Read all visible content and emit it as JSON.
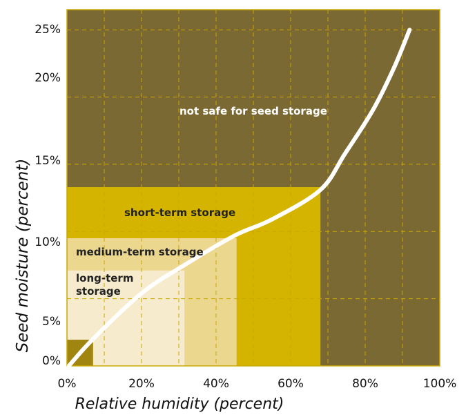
{
  "chart_data": {
    "type": "region-curve",
    "x_axis_label": "Relative humidity (percent)",
    "y_axis_label": "Seed moisture (percent)",
    "xlim": [
      0,
      100
    ],
    "ylim": [
      0,
      26.5
    ],
    "xticks": [
      {
        "value": 0,
        "label": "0%"
      },
      {
        "value": 20,
        "label": "20%"
      },
      {
        "value": 40,
        "label": "40%"
      },
      {
        "value": 60,
        "label": "60%"
      },
      {
        "value": 80,
        "label": "80%"
      },
      {
        "value": 100,
        "label": "100%"
      }
    ],
    "x_minor_grid": [
      10,
      30,
      50,
      70,
      90
    ],
    "yticks": [
      {
        "value": 0,
        "label": "0%"
      },
      {
        "value": 5,
        "label": "5%"
      },
      {
        "value": 10,
        "label": "10%"
      },
      {
        "value": 15,
        "label": "15%"
      },
      {
        "value": 20,
        "label": "20%"
      },
      {
        "value": 25,
        "label": "25%"
      }
    ],
    "grid": true,
    "background": {
      "label": "not safe for seed storage",
      "color": "#7b6933"
    },
    "regions": [
      {
        "label": "short-term storage",
        "x": 68,
        "y": 13.3,
        "color": "#d5b400"
      },
      {
        "label": "medium-term storage",
        "x": 45.5,
        "y": 9.5,
        "color": "#ecd78f"
      },
      {
        "label": "long-term storage",
        "x": 31.5,
        "y": 7.1,
        "color": "#f6ebcc"
      },
      {
        "x": 7,
        "y": 1.95,
        "color": "#a08510"
      }
    ],
    "series": [
      {
        "color": "#ffffff",
        "x": [
          0.5,
          7,
          20,
          31.5,
          45,
          55,
          68,
          74.6,
          82,
          87.6,
          91.9
        ],
        "y": [
          0,
          2,
          5.4,
          7.5,
          9.7,
          10.9,
          13.1,
          15.8,
          19,
          22.1,
          25
        ]
      }
    ]
  }
}
